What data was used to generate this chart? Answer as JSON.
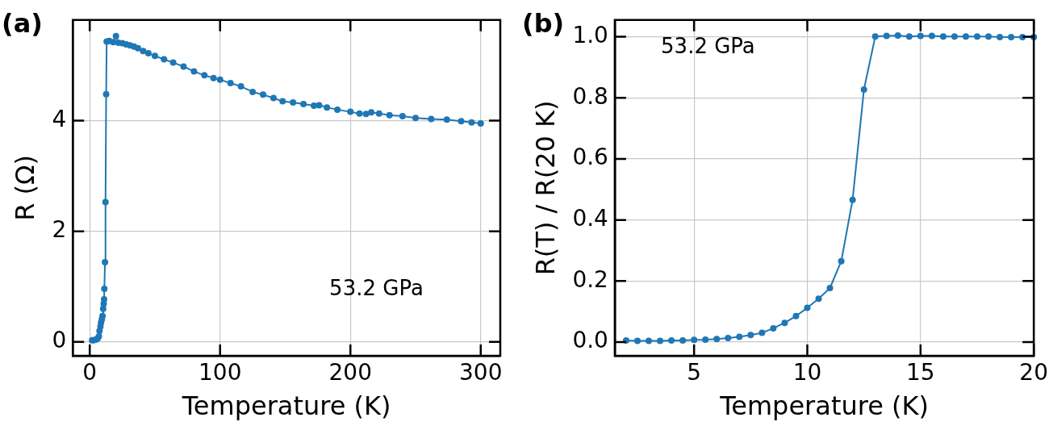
{
  "chart_data": [
    {
      "type": "line",
      "xlabel": "Temperature (K)",
      "ylabel": "R (Ω)",
      "annotations": [
        "(a)",
        "53.2 GPa"
      ],
      "color": "#1f77b4",
      "marker": "circle",
      "grid": true,
      "x": [
        1.8,
        3,
        4.5,
        6,
        7,
        7.5,
        8.2,
        8.7,
        9.3,
        9.8,
        10.3,
        10.7,
        11,
        11.2,
        11.7,
        12.1,
        12.6,
        13,
        15,
        18,
        20.1,
        22,
        25,
        28,
        31,
        34,
        37,
        41,
        45,
        50,
        57,
        64,
        72,
        80,
        88,
        95,
        100,
        108,
        116,
        125,
        133,
        141,
        148,
        156,
        164,
        172,
        176,
        182,
        190,
        200,
        207,
        212,
        216,
        222,
        230,
        240,
        250,
        262,
        274,
        285,
        293,
        300
      ],
      "values": [
        0.03,
        0.03,
        0.04,
        0.06,
        0.1,
        0.2,
        0.28,
        0.35,
        0.41,
        0.47,
        0.6,
        0.69,
        0.77,
        0.96,
        1.44,
        2.53,
        4.48,
        5.43,
        5.44,
        5.42,
        5.53,
        5.41,
        5.4,
        5.38,
        5.36,
        5.34,
        5.31,
        5.26,
        5.22,
        5.17,
        5.11,
        5.05,
        4.98,
        4.89,
        4.82,
        4.77,
        4.74,
        4.68,
        4.62,
        4.52,
        4.47,
        4.41,
        4.35,
        4.33,
        4.3,
        4.27,
        4.28,
        4.24,
        4.2,
        4.16,
        4.13,
        4.12,
        4.15,
        4.13,
        4.1,
        4.08,
        4.05,
        4.03,
        4.02,
        3.99,
        3.97,
        3.95
      ],
      "xlim": [
        -13,
        315
      ],
      "ylim": [
        -0.25,
        5.82
      ],
      "xticks": [
        0,
        100,
        200,
        300
      ],
      "yticks": [
        0,
        2,
        4
      ]
    },
    {
      "type": "line",
      "xlabel": "Temperature (K)",
      "ylabel": "R(T) / R(20 K)",
      "annotations": [
        "(b)",
        "53.2 GPa"
      ],
      "color": "#1f77b4",
      "marker": "circle",
      "grid": true,
      "x": [
        2,
        2.5,
        3,
        3.5,
        4,
        4.5,
        5,
        5.5,
        6,
        6.5,
        7,
        7.5,
        8,
        8.5,
        9,
        9.5,
        10,
        10.5,
        11,
        11.5,
        12,
        12.5,
        13,
        13.5,
        14,
        14.5,
        15,
        15.5,
        16,
        16.5,
        17,
        17.5,
        18,
        18.5,
        19,
        19.5,
        20
      ],
      "values": [
        0.005,
        0.004,
        0.004,
        0.004,
        0.005,
        0.005,
        0.007,
        0.008,
        0.01,
        0.013,
        0.017,
        0.023,
        0.03,
        0.045,
        0.063,
        0.085,
        0.112,
        0.142,
        0.177,
        0.265,
        0.466,
        0.827,
        1.001,
        1.003,
        1.004,
        1.001,
        1.003,
        1.003,
        1.001,
        1.001,
        1.001,
        1.001,
        1.001,
        0.999,
        0.999,
        0.999,
        0.999
      ],
      "xlim": [
        1.5,
        20
      ],
      "ylim": [
        -0.045,
        1.055
      ],
      "xticks": [
        5,
        10,
        15,
        20
      ],
      "yticks": [
        {
          "value": 0,
          "label": "0.0"
        },
        0.2,
        0.4,
        0.6,
        0.8,
        {
          "value": 1,
          "label": "1.0"
        }
      ]
    }
  ]
}
